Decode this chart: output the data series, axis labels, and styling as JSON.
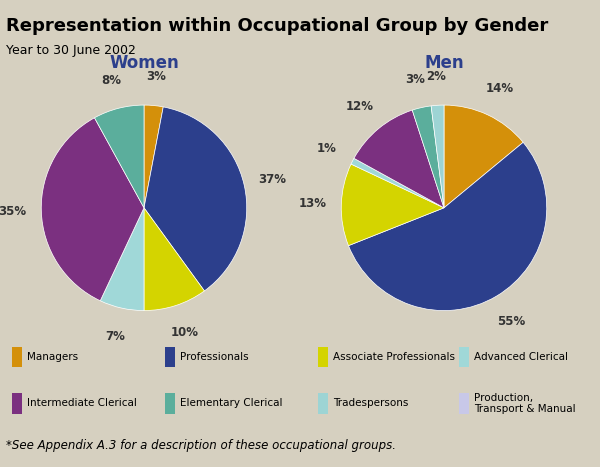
{
  "title": "Representation within Occupational Group by Gender",
  "subtitle": "Year to 30 June 2002",
  "footnote": "*See Appendix A.3 for a description of these occupational groups.",
  "title_bg_color": "#E8931E",
  "background_color": "#D6D0C0",
  "categories": [
    "Managers",
    "Professionals",
    "Associate Professionals",
    "Advanced Clerical",
    "Intermediate Clerical",
    "Elementary Clerical",
    "Tradespersons",
    "Production,\nTransport & Manual"
  ],
  "colors": [
    "#D4900A",
    "#2C3F8C",
    "#D4D400",
    "#A0D8D8",
    "#7B3080",
    "#5BAE9C",
    "#9DD4D4",
    "#C8C8E8"
  ],
  "women_values": [
    3,
    37,
    10,
    7,
    35,
    8,
    0,
    0
  ],
  "women_labels": [
    "3%",
    "37%",
    "10%",
    "7%",
    "35%",
    "8%",
    "",
    ""
  ],
  "men_values": [
    14,
    55,
    13,
    1,
    12,
    3,
    2,
    0
  ],
  "men_labels": [
    "14%",
    "55%",
    "13%",
    "1%",
    "12%",
    "3%",
    "2%",
    ""
  ],
  "women_title": "Women",
  "men_title": "Men"
}
